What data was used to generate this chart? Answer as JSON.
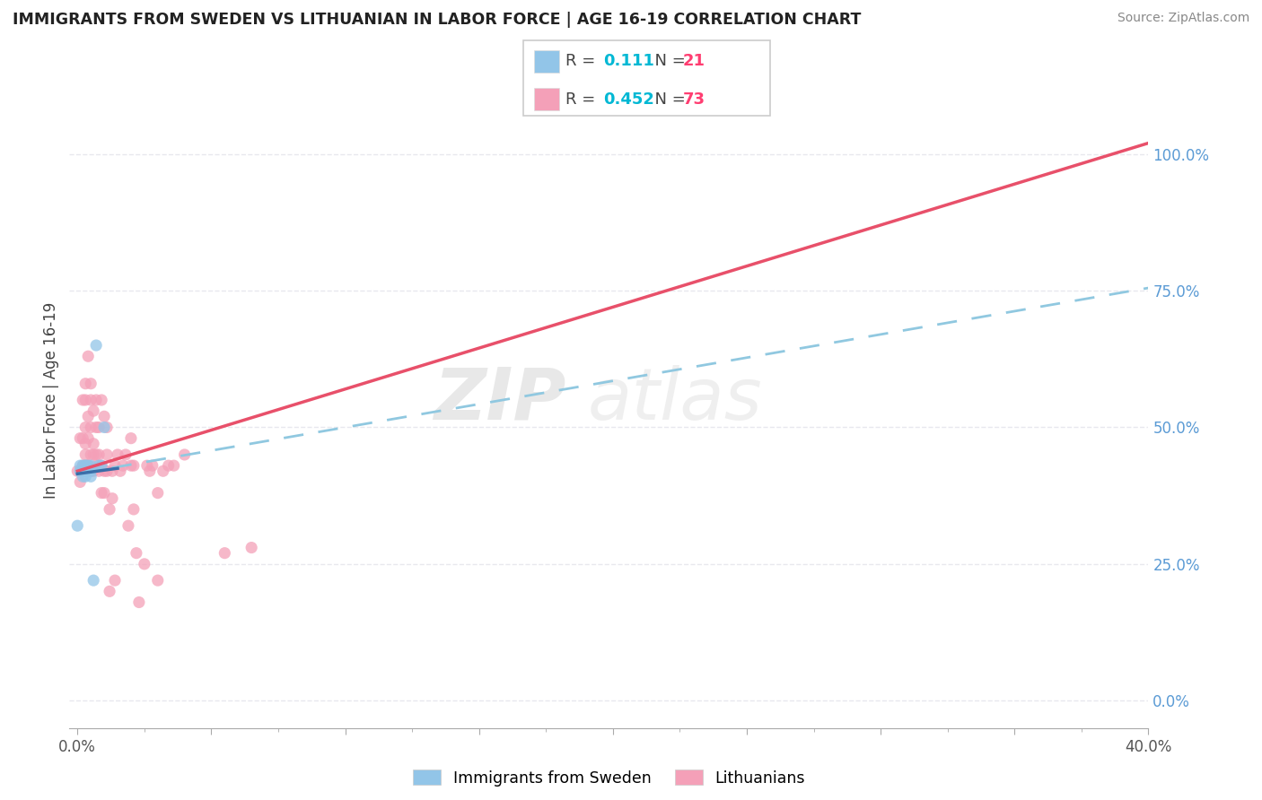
{
  "title": "IMMIGRANTS FROM SWEDEN VS LITHUANIAN IN LABOR FORCE | AGE 16-19 CORRELATION CHART",
  "source": "Source: ZipAtlas.com",
  "ylabel": "In Labor Force | Age 16-19",
  "xlim": [
    -0.003,
    0.4
  ],
  "ylim": [
    -0.05,
    1.15
  ],
  "xtick_positions": [
    0.0,
    0.05,
    0.1,
    0.15,
    0.2,
    0.25,
    0.3,
    0.35,
    0.4
  ],
  "xtick_minor": [
    0.025,
    0.075,
    0.125,
    0.175,
    0.225,
    0.275,
    0.325,
    0.375
  ],
  "ytick_positions": [
    0.0,
    0.25,
    0.5,
    0.75,
    1.0
  ],
  "ytick_labels": [
    "0.0%",
    "25.0%",
    "50.0%",
    "75.0%",
    "100.0%"
  ],
  "sweden_R": 0.111,
  "sweden_N": 21,
  "lithuanian_R": 0.452,
  "lithuanian_N": 73,
  "sweden_color": "#92c5e8",
  "lithuanian_color": "#f4a0b8",
  "sweden_line_color": "#90c8e0",
  "lithuanian_line_color": "#e8506a",
  "background_color": "#ffffff",
  "watermark_zip": "ZIP",
  "watermark_atlas": "atlas",
  "grid_color": "#e8e8ee",
  "ytick_color": "#5b9bd5",
  "sweden_x": [
    0.0,
    0.001,
    0.001,
    0.002,
    0.002,
    0.002,
    0.003,
    0.003,
    0.003,
    0.003,
    0.004,
    0.004,
    0.004,
    0.005,
    0.005,
    0.005,
    0.006,
    0.007,
    0.008,
    0.009,
    0.01
  ],
  "sweden_y": [
    0.32,
    0.42,
    0.43,
    0.43,
    0.42,
    0.41,
    0.42,
    0.41,
    0.43,
    0.43,
    0.43,
    0.42,
    0.42,
    0.43,
    0.42,
    0.41,
    0.22,
    0.65,
    0.43,
    0.43,
    0.5
  ],
  "lithuanian_x": [
    0.0,
    0.001,
    0.001,
    0.002,
    0.002,
    0.002,
    0.002,
    0.003,
    0.003,
    0.003,
    0.003,
    0.003,
    0.003,
    0.003,
    0.004,
    0.004,
    0.004,
    0.004,
    0.004,
    0.005,
    0.005,
    0.005,
    0.005,
    0.005,
    0.006,
    0.006,
    0.006,
    0.006,
    0.007,
    0.007,
    0.007,
    0.007,
    0.008,
    0.008,
    0.008,
    0.009,
    0.009,
    0.009,
    0.01,
    0.01,
    0.01,
    0.011,
    0.011,
    0.011,
    0.012,
    0.012,
    0.013,
    0.013,
    0.014,
    0.014,
    0.015,
    0.016,
    0.017,
    0.018,
    0.019,
    0.02,
    0.02,
    0.021,
    0.021,
    0.022,
    0.023,
    0.025,
    0.026,
    0.027,
    0.028,
    0.03,
    0.03,
    0.032,
    0.034,
    0.036,
    0.04,
    0.055,
    0.065
  ],
  "lithuanian_y": [
    0.42,
    0.4,
    0.48,
    0.42,
    0.48,
    0.55,
    0.43,
    0.42,
    0.45,
    0.47,
    0.55,
    0.5,
    0.43,
    0.58,
    0.43,
    0.48,
    0.52,
    0.63,
    0.43,
    0.42,
    0.45,
    0.5,
    0.55,
    0.58,
    0.42,
    0.45,
    0.47,
    0.53,
    0.43,
    0.45,
    0.5,
    0.55,
    0.42,
    0.45,
    0.5,
    0.38,
    0.43,
    0.55,
    0.38,
    0.42,
    0.52,
    0.42,
    0.45,
    0.5,
    0.35,
    0.2,
    0.42,
    0.37,
    0.22,
    0.43,
    0.45,
    0.42,
    0.43,
    0.45,
    0.32,
    0.43,
    0.48,
    0.35,
    0.43,
    0.27,
    0.18,
    0.25,
    0.43,
    0.42,
    0.43,
    0.22,
    0.38,
    0.42,
    0.43,
    0.43,
    0.45,
    0.27,
    0.28
  ],
  "sweden_trendline_x": [
    0.0,
    0.4
  ],
  "sweden_trendline_y": [
    0.415,
    0.755
  ],
  "lithuanian_trendline_x": [
    0.0,
    0.4
  ],
  "lithuanian_trendline_y": [
    0.42,
    1.02
  ]
}
